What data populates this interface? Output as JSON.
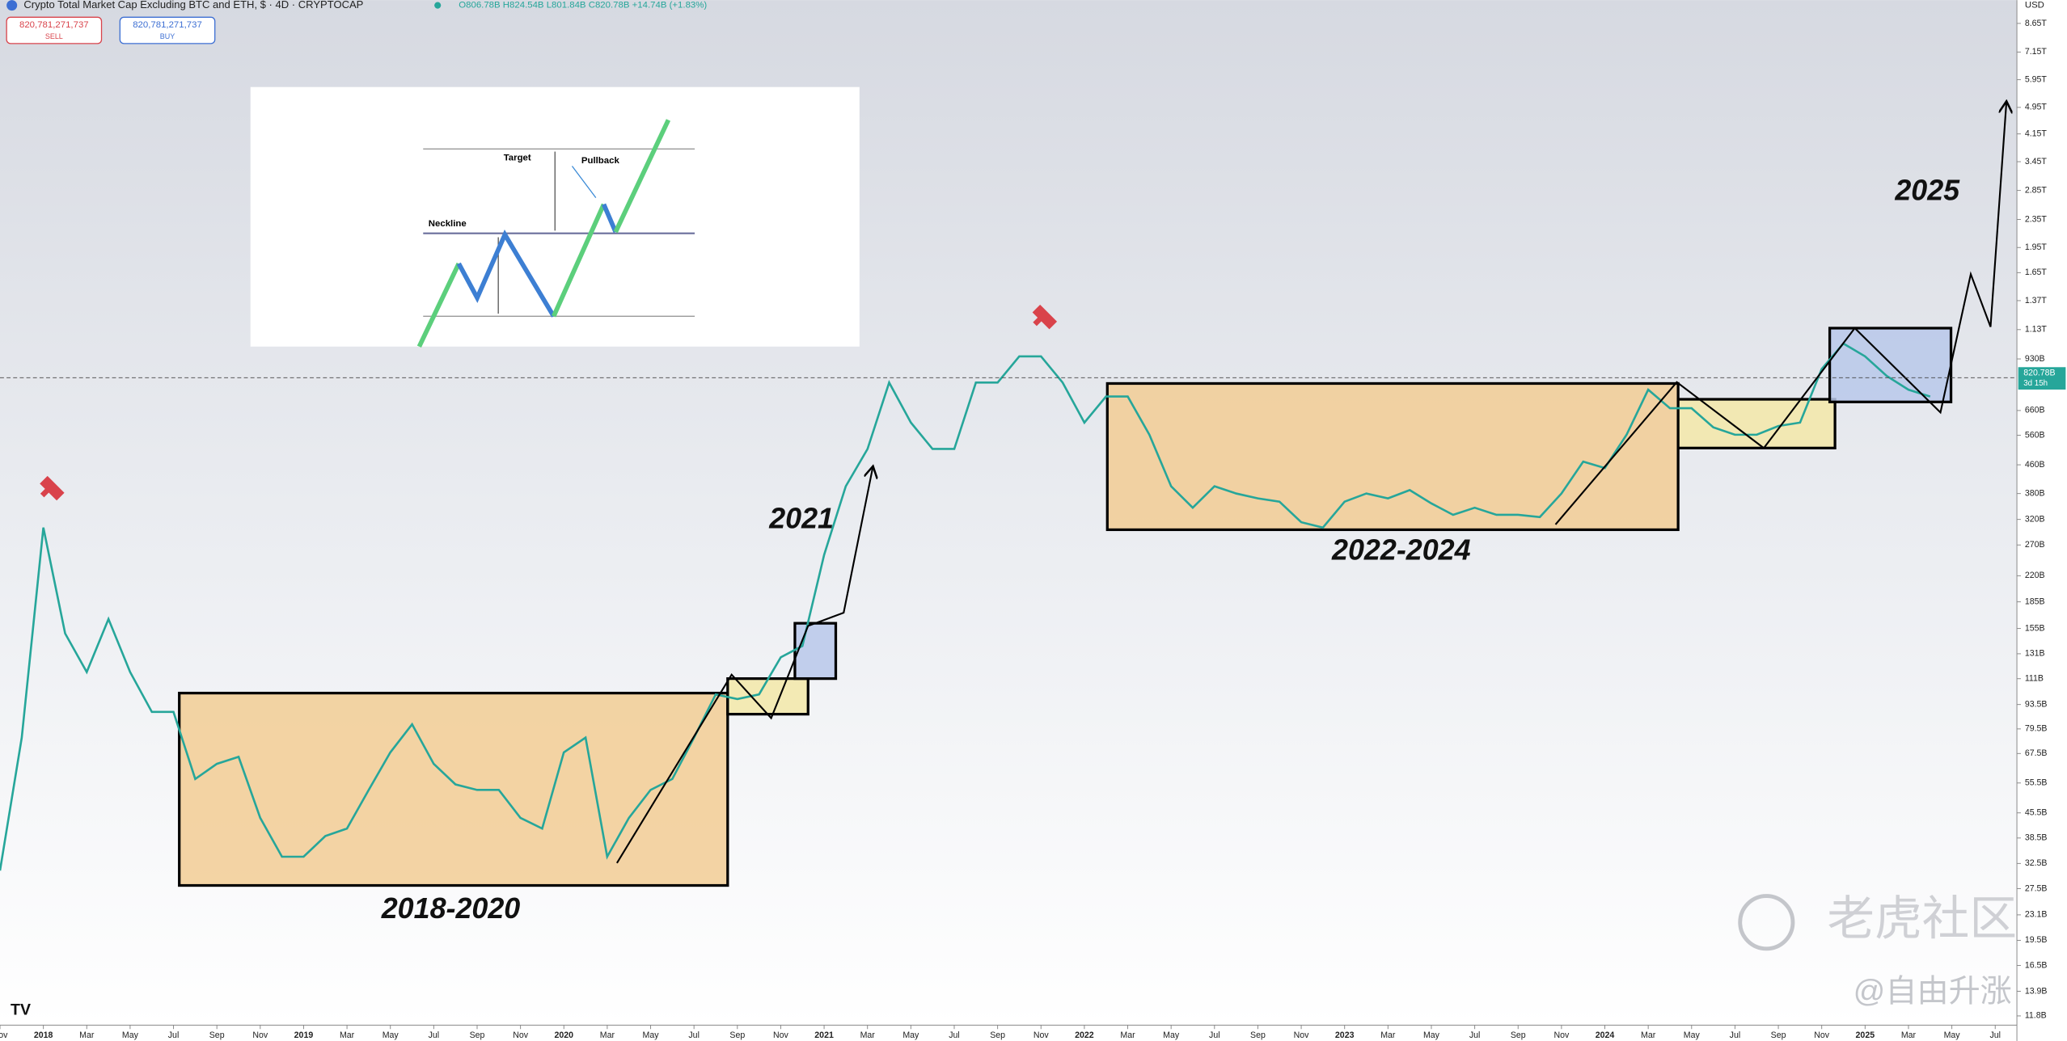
{
  "chart_data": {
    "type": "line",
    "title": "Crypto Total Market Cap Excluding BTC and ETH, $ · 4D · CRYPTOCAP",
    "ohlc": "O806.78B H824.54B L801.84B C820.78B +14.74B (+1.83%)",
    "currency": "USD",
    "color": "#26a69a",
    "log_scale": true,
    "last_price": {
      "value": 820.78,
      "label": "820.78B"
    },
    "countdown": "3d 15h",
    "x": [
      "2017-11",
      "2017-12",
      "2018-01",
      "2018-02",
      "2018-03",
      "2018-04",
      "2018-05",
      "2018-06",
      "2018-07",
      "2018-08",
      "2018-09",
      "2018-10",
      "2018-11",
      "2018-12",
      "2019-01",
      "2019-02",
      "2019-03",
      "2019-04",
      "2019-05",
      "2019-06",
      "2019-07",
      "2019-08",
      "2019-09",
      "2019-10",
      "2019-11",
      "2019-12",
      "2020-01",
      "2020-02",
      "2020-03",
      "2020-04",
      "2020-05",
      "2020-06",
      "2020-07",
      "2020-08",
      "2020-09",
      "2020-10",
      "2020-11",
      "2020-12",
      "2021-01",
      "2021-02",
      "2021-03",
      "2021-04",
      "2021-05",
      "2021-06",
      "2021-07",
      "2021-08",
      "2021-09",
      "2021-10",
      "2021-11",
      "2021-12",
      "2022-01",
      "2022-02",
      "2022-03",
      "2022-04",
      "2022-05",
      "2022-06",
      "2022-07",
      "2022-08",
      "2022-09",
      "2022-10",
      "2022-11",
      "2022-12",
      "2023-01",
      "2023-02",
      "2023-03",
      "2023-04",
      "2023-05",
      "2023-06",
      "2023-07",
      "2023-08",
      "2023-09",
      "2023-10",
      "2023-11",
      "2023-12",
      "2024-01",
      "2024-02",
      "2024-03",
      "2024-04",
      "2024-05",
      "2024-06",
      "2024-07",
      "2024-08",
      "2024-09",
      "2024-10",
      "2024-11",
      "2024-12",
      "2025-01",
      "2025-02",
      "2025-03",
      "2025-04"
    ],
    "values": [
      31,
      75,
      303,
      150,
      116,
      165,
      116,
      89,
      89,
      57,
      63,
      66,
      44,
      34,
      34,
      39,
      41,
      53,
      68,
      82,
      63,
      55,
      53,
      53,
      44,
      41,
      68,
      75,
      34,
      44,
      53,
      57,
      75,
      100,
      97,
      100,
      128,
      138,
      253,
      399,
      511,
      795,
      609,
      511,
      511,
      795,
      795,
      946,
      946,
      795,
      609,
      724,
      724,
      562,
      399,
      346,
      399,
      380,
      368,
      360,
      314,
      303,
      360,
      380,
      368,
      389,
      356,
      330,
      346,
      330,
      330,
      325,
      380,
      470,
      450,
      562,
      758,
      670,
      670,
      590,
      562,
      562,
      595,
      609,
      870,
      1030,
      946,
      830,
      758,
      724
    ],
    "xlim": [
      "2017-11",
      "2025-08"
    ],
    "xticks": [
      {
        "value": "2017-11",
        "label": "Nov"
      },
      {
        "value": "2018-01",
        "label": "2018"
      },
      {
        "value": "2018-03",
        "label": "Mar"
      },
      {
        "value": "2018-05",
        "label": "May"
      },
      {
        "value": "2018-07",
        "label": "Jul"
      },
      {
        "value": "2018-09",
        "label": "Sep"
      },
      {
        "value": "2018-11",
        "label": "Nov"
      },
      {
        "value": "2019-01",
        "label": "2019"
      },
      {
        "value": "2019-03",
        "label": "Mar"
      },
      {
        "value": "2019-05",
        "label": "May"
      },
      {
        "value": "2019-07",
        "label": "Jul"
      },
      {
        "value": "2019-09",
        "label": "Sep"
      },
      {
        "value": "2019-11",
        "label": "Nov"
      },
      {
        "value": "2020-01",
        "label": "2020"
      },
      {
        "value": "2020-03",
        "label": "Mar"
      },
      {
        "value": "2020-05",
        "label": "May"
      },
      {
        "value": "2020-07",
        "label": "Jul"
      },
      {
        "value": "2020-09",
        "label": "Sep"
      },
      {
        "value": "2020-11",
        "label": "Nov"
      },
      {
        "value": "2021-01",
        "label": "2021"
      },
      {
        "value": "2021-03",
        "label": "Mar"
      },
      {
        "value": "2021-05",
        "label": "May"
      },
      {
        "value": "2021-07",
        "label": "Jul"
      },
      {
        "value": "2021-09",
        "label": "Sep"
      },
      {
        "value": "2021-11",
        "label": "Nov"
      },
      {
        "value": "2022-01",
        "label": "2022"
      },
      {
        "value": "2022-03",
        "label": "Mar"
      },
      {
        "value": "2022-05",
        "label": "May"
      },
      {
        "value": "2022-07",
        "label": "Jul"
      },
      {
        "value": "2022-09",
        "label": "Sep"
      },
      {
        "value": "2022-11",
        "label": "Nov"
      },
      {
        "value": "2023-01",
        "label": "2023"
      },
      {
        "value": "2023-03",
        "label": "Mar"
      },
      {
        "value": "2023-05",
        "label": "May"
      },
      {
        "value": "2023-07",
        "label": "Jul"
      },
      {
        "value": "2023-09",
        "label": "Sep"
      },
      {
        "value": "2023-11",
        "label": "Nov"
      },
      {
        "value": "2024-01",
        "label": "2024"
      },
      {
        "value": "2024-03",
        "label": "Mar"
      },
      {
        "value": "2024-05",
        "label": "May"
      },
      {
        "value": "2024-07",
        "label": "Jul"
      },
      {
        "value": "2024-09",
        "label": "Sep"
      },
      {
        "value": "2024-11",
        "label": "Nov"
      },
      {
        "value": "2025-01",
        "label": "2025"
      },
      {
        "value": "2025-03",
        "label": "Mar"
      },
      {
        "value": "2025-05",
        "label": "May"
      },
      {
        "value": "2025-07",
        "label": "Jul"
      }
    ],
    "ylim": [
      11.1,
      10100
    ],
    "yticks": [
      {
        "value": 8650,
        "label": "8.65T"
      },
      {
        "value": 7150,
        "label": "7.15T"
      },
      {
        "value": 5950,
        "label": "5.95T"
      },
      {
        "value": 4950,
        "label": "4.95T"
      },
      {
        "value": 4150,
        "label": "4.15T"
      },
      {
        "value": 3450,
        "label": "3.45T"
      },
      {
        "value": 2850,
        "label": "2.85T"
      },
      {
        "value": 2350,
        "label": "2.35T"
      },
      {
        "value": 1950,
        "label": "1.95T"
      },
      {
        "value": 1650,
        "label": "1.65T"
      },
      {
        "value": 1370,
        "label": "1.37T"
      },
      {
        "value": 1130,
        "label": "1.13T"
      },
      {
        "value": 930,
        "label": "930B"
      },
      {
        "value": 660,
        "label": "660B"
      },
      {
        "value": 560,
        "label": "560B"
      },
      {
        "value": 460,
        "label": "460B"
      },
      {
        "value": 380,
        "label": "380B"
      },
      {
        "value": 320,
        "label": "320B"
      },
      {
        "value": 270,
        "label": "270B"
      },
      {
        "value": 220,
        "label": "220B"
      },
      {
        "value": 185,
        "label": "185B"
      },
      {
        "value": 155,
        "label": "155B"
      },
      {
        "value": 131,
        "label": "131B"
      },
      {
        "value": 111,
        "label": "111B"
      },
      {
        "value": 93.5,
        "label": "93.5B"
      },
      {
        "value": 79.5,
        "label": "79.5B"
      },
      {
        "value": 67.5,
        "label": "67.5B"
      },
      {
        "value": 55.5,
        "label": "55.5B"
      },
      {
        "value": 45.5,
        "label": "45.5B"
      },
      {
        "value": 38.5,
        "label": "38.5B"
      },
      {
        "value": 32.5,
        "label": "32.5B"
      },
      {
        "value": 27.5,
        "label": "27.5B"
      },
      {
        "value": 23.1,
        "label": "23.1B"
      },
      {
        "value": 19.5,
        "label": "19.5B"
      },
      {
        "value": 16.5,
        "label": "16.5B"
      },
      {
        "value": 13.9,
        "label": "13.9B"
      },
      {
        "value": 11.8,
        "label": "11.8B"
      }
    ]
  },
  "trade": {
    "sell_price": "820,781,271,737",
    "sell": "SELL",
    "buy_price": "820,781,271,737",
    "buy": "BUY"
  },
  "annotations": [
    "2018-2020",
    "2021",
    "2022-2024",
    "2025"
  ],
  "inset": {
    "target": "Target",
    "pullback": "Pullback",
    "neckline": "Neckline"
  },
  "watermark": {
    "brand": "老虎社区",
    "author": "@自由升涨"
  }
}
